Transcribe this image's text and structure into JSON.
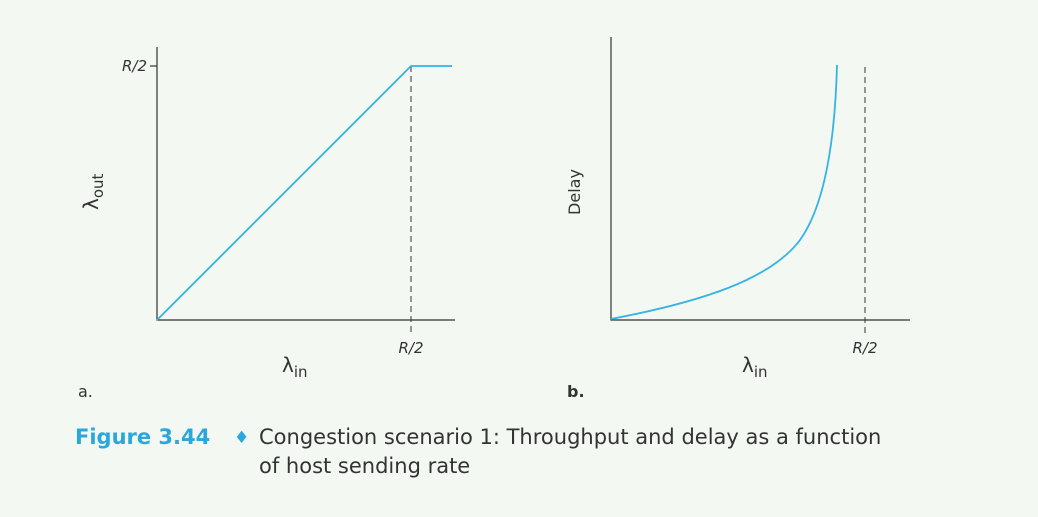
{
  "panels": [
    {
      "label": "a.",
      "y_axis": {
        "symbol": "λ",
        "subscript": "out",
        "tick": "R/2"
      },
      "x_axis": {
        "symbol": "λ",
        "subscript": "in",
        "tick": "R/2"
      }
    },
    {
      "label": "b.",
      "y_axis": {
        "label": "Delay"
      },
      "x_axis": {
        "symbol": "λ",
        "subscript": "in",
        "tick": "R/2"
      }
    }
  ],
  "caption": {
    "figure": "Figure 3.44",
    "separator": "♦",
    "lines": [
      "Congestion scenario 1: Throughput and delay as a function",
      "of host sending rate"
    ]
  }
}
